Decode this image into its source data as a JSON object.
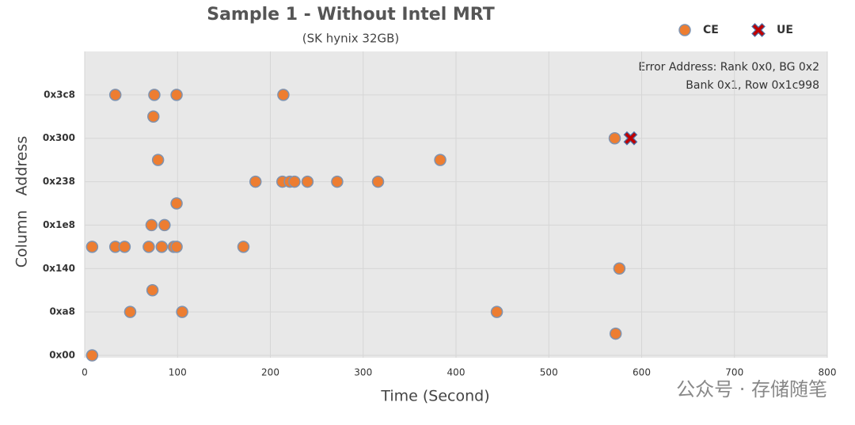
{
  "chart_data": {
    "type": "scatter",
    "title": "Sample 1 - Without Intel MRT",
    "subtitle": "(SK hynix 32GB)",
    "x_label": "Time (Second)",
    "y_label": "Column   Address",
    "annotations": [
      "Error Address: Rank 0x0, BG 0x2",
      "Bank 0x1, Row 0x1c998"
    ],
    "watermark": "公众号 · 存储随笔",
    "xlim": [
      0,
      800
    ],
    "xticks": [
      0,
      100,
      200,
      300,
      400,
      500,
      600,
      700,
      800
    ],
    "ylim": [
      0,
      7
    ],
    "yticks": [
      {
        "value": 0,
        "label": "0x00"
      },
      {
        "value": 1,
        "label": "0xa8"
      },
      {
        "value": 2,
        "label": "0x140"
      },
      {
        "value": 3,
        "label": "0x1e8"
      },
      {
        "value": 4,
        "label": "0x238"
      },
      {
        "value": 5,
        "label": "0x300"
      },
      {
        "value": 6,
        "label": "0x3c8"
      }
    ],
    "grid": true,
    "legend": "top-right",
    "series": [
      {
        "name": "CE",
        "color": "#ed7d31",
        "marker": "circle",
        "x": [
          33,
          75,
          99,
          214,
          74,
          571,
          79,
          383,
          184,
          213,
          221,
          226,
          240,
          272,
          316,
          99,
          72,
          86,
          8,
          33,
          43,
          69,
          83,
          96,
          99,
          171,
          576,
          73,
          49,
          105,
          444,
          572,
          8
        ],
        "y": [
          6,
          6,
          6,
          6,
          5.5,
          5,
          4.5,
          4.5,
          4,
          4,
          4,
          4,
          4,
          4,
          4,
          3.5,
          3,
          3,
          2.5,
          2.5,
          2.5,
          2.5,
          2.5,
          2.5,
          2.5,
          2.5,
          2,
          1.5,
          1,
          1,
          1,
          0.5,
          0
        ]
      },
      {
        "name": "UE",
        "color": "#c00000",
        "marker": "x",
        "x": [
          588
        ],
        "y": [
          5
        ]
      }
    ]
  }
}
